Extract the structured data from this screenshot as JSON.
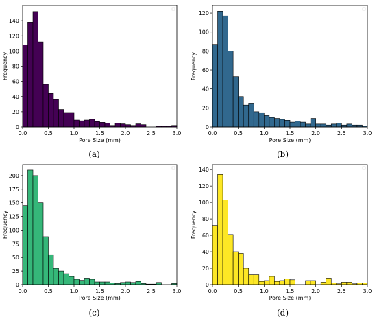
{
  "colors": {
    "a": "#440154",
    "b": "#31688e",
    "c": "#35b779",
    "d": "#fde725",
    "edge": "#000000"
  },
  "chart_data": [
    {
      "type": "bar",
      "panel": "a",
      "caption": "(a)",
      "xlabel": "Pore Size (mm)",
      "ylabel": "Frequency",
      "xlim": [
        0,
        3.0
      ],
      "ylim": [
        0,
        160
      ],
      "xticks": [
        "0.0",
        "0.5",
        "1.0",
        "1.5",
        "2.0",
        "2.5",
        "3.0"
      ],
      "yticks": [
        "0",
        "20",
        "40",
        "60",
        "80",
        "100",
        "120",
        "140"
      ],
      "ytick_values": [
        0,
        20,
        40,
        60,
        80,
        100,
        120,
        140
      ],
      "bin_width": 0.1,
      "values": [
        108,
        138,
        152,
        112,
        56,
        44,
        36,
        23,
        19,
        19,
        9,
        8,
        9,
        10,
        7,
        6,
        5,
        2,
        5,
        4,
        3,
        2,
        4,
        3,
        0,
        0,
        1,
        1,
        1,
        2
      ]
    },
    {
      "type": "bar",
      "panel": "b",
      "caption": "(b)",
      "xlabel": "Pore Size (mm)",
      "ylabel": "Frequency",
      "xlim": [
        0,
        3.0
      ],
      "ylim": [
        0,
        128
      ],
      "xticks": [
        "0.0",
        "0.5",
        "1.0",
        "1.5",
        "2.0",
        "2.5",
        "3.0"
      ],
      "yticks": [
        "0",
        "20",
        "40",
        "60",
        "80",
        "100",
        "120"
      ],
      "ytick_values": [
        0,
        20,
        40,
        60,
        80,
        100,
        120
      ],
      "bin_width": 0.1,
      "values": [
        87,
        122,
        117,
        80,
        53,
        32,
        23,
        25,
        16,
        15,
        12,
        10,
        9,
        8,
        7,
        5,
        6,
        5,
        3,
        9,
        3,
        3,
        2,
        3,
        4,
        2,
        3,
        2,
        2,
        1
      ]
    },
    {
      "type": "bar",
      "panel": "c",
      "caption": "(c)",
      "xlabel": "Pore Size (mm)",
      "ylabel": "Frequency",
      "xlim": [
        0,
        3.0
      ],
      "ylim": [
        0,
        220
      ],
      "xticks": [
        "0.0",
        "0.5",
        "1.0",
        "1.5",
        "2.0",
        "2.5",
        "3.0"
      ],
      "yticks": [
        "0",
        "25",
        "50",
        "75",
        "100",
        "125",
        "150",
        "175",
        "200"
      ],
      "ytick_values": [
        0,
        25,
        50,
        75,
        100,
        125,
        150,
        175,
        200
      ],
      "bin_width": 0.1,
      "values": [
        145,
        210,
        200,
        150,
        88,
        55,
        30,
        25,
        20,
        15,
        10,
        8,
        12,
        10,
        5,
        5,
        5,
        3,
        2,
        4,
        5,
        4,
        6,
        2,
        1,
        1,
        4,
        0,
        0,
        2
      ]
    },
    {
      "type": "bar",
      "panel": "d",
      "caption": "(d)",
      "xlabel": "Pore Size (mm)",
      "ylabel": "Frequency",
      "xlim": [
        0,
        3.0
      ],
      "ylim": [
        0,
        146
      ],
      "xticks": [
        "0.0",
        "0.5",
        "1.0",
        "1.5",
        "2.0",
        "2.5",
        "3.0"
      ],
      "yticks": [
        "0",
        "20",
        "40",
        "60",
        "80",
        "100",
        "120",
        "140"
      ],
      "ytick_values": [
        0,
        20,
        40,
        60,
        80,
        100,
        120,
        140
      ],
      "bin_width": 0.1,
      "values": [
        72,
        134,
        103,
        61,
        40,
        38,
        20,
        12,
        12,
        4,
        5,
        10,
        4,
        5,
        7,
        6,
        0,
        0,
        5,
        5,
        0,
        3,
        8,
        2,
        1,
        3,
        3,
        1,
        2,
        2
      ]
    }
  ]
}
